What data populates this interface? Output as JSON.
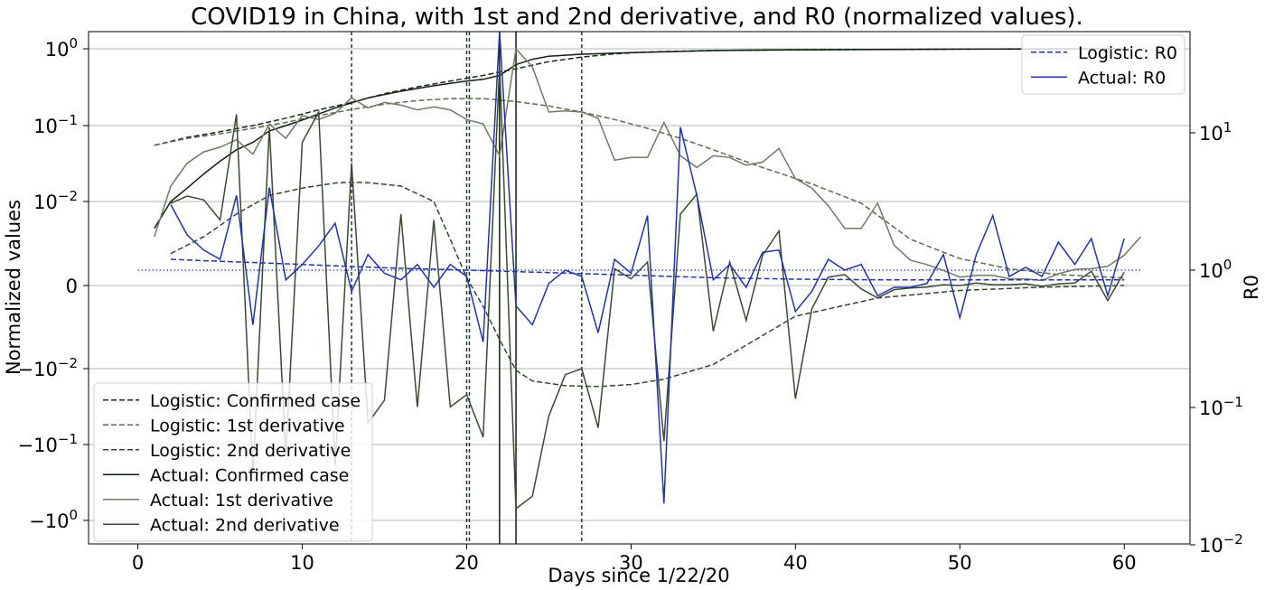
{
  "chart_data": {
    "type": "line",
    "title": "COVID19 in China, with 1st and 2nd derivative, and R0 (normalized values).",
    "xlabel": "Days since 1/22/20",
    "ylabel": "Normalized values",
    "y2label": "R0",
    "xlim": [
      -3,
      64
    ],
    "x_ticks": [
      "0",
      "10",
      "20",
      "30",
      "40",
      "50",
      "60"
    ],
    "y_scale": "symlog",
    "y_ticks": [
      {
        "base": "10",
        "exp": "0"
      },
      {
        "base": "10",
        "exp": "−1"
      },
      {
        "base": "10",
        "exp": "−2"
      },
      {
        "base": "0",
        "exp": ""
      },
      {
        "base": "−10",
        "exp": "−2"
      },
      {
        "base": "−10",
        "exp": "−1"
      },
      {
        "base": "−10",
        "exp": "0"
      }
    ],
    "y2_scale": "log",
    "y2_ticks": [
      {
        "base": "10",
        "exp": "1"
      },
      {
        "base": "10",
        "exp": "0"
      },
      {
        "base": "10",
        "exp": "−1"
      },
      {
        "base": "10",
        "exp": "−2"
      }
    ],
    "grid": "horizontal",
    "vlines": [
      13,
      20,
      22,
      23,
      27
    ],
    "r0_reference_line": 1.0,
    "legend_left": [
      {
        "label": "Logistic: Confirmed case",
        "color": "#1b2a1b",
        "style": "dashed"
      },
      {
        "label": "Logistic: 1st derivative",
        "color": "#5a6a50",
        "style": "dashed"
      },
      {
        "label": "Logistic: 2nd derivative",
        "color": "#2f4a2f",
        "style": "dashed"
      },
      {
        "label": "Actual:   Confirmed case",
        "color": "#0f1f0f",
        "style": "solid"
      },
      {
        "label": "Actual:   1st derivative",
        "color": "#707a66",
        "style": "solid"
      },
      {
        "label": "Actual:   2nd derivative",
        "color": "#3a4a30",
        "style": "solid"
      }
    ],
    "legend_right": [
      {
        "label": "Logistic: R0",
        "color": "#2233aa",
        "style": "dashed"
      },
      {
        "label": "Actual:   R0",
        "color": "#2233aa",
        "style": "solid"
      }
    ],
    "series": [
      {
        "name": "Logistic: Confirmed case",
        "axis": "left",
        "color": "#1b2a1b",
        "style": "dashed",
        "x": [
          1,
          3,
          5,
          7,
          9,
          11,
          13,
          15,
          17,
          19,
          21,
          23,
          25,
          27,
          29,
          31,
          35,
          40,
          45,
          50,
          55,
          60
        ],
        "y": [
          0.055,
          0.07,
          0.083,
          0.1,
          0.125,
          0.16,
          0.2,
          0.26,
          0.32,
          0.38,
          0.45,
          0.55,
          0.68,
          0.78,
          0.86,
          0.91,
          0.95,
          0.97,
          0.98,
          0.99,
          1.0,
          1.0
        ]
      },
      {
        "name": "Logistic: 1st derivative",
        "axis": "left",
        "color": "#5a6a50",
        "style": "dashed",
        "x": [
          1,
          3,
          5,
          7,
          9,
          11,
          13,
          15,
          17,
          19,
          21,
          23,
          25,
          27,
          29,
          31,
          33,
          35,
          38,
          41,
          44,
          47,
          50,
          53,
          56,
          60
        ],
        "y": [
          0.055,
          0.068,
          0.078,
          0.092,
          0.11,
          0.135,
          0.162,
          0.19,
          0.212,
          0.225,
          0.225,
          0.205,
          0.18,
          0.15,
          0.12,
          0.092,
          0.068,
          0.048,
          0.028,
          0.017,
          0.0098,
          0.0055,
          0.0032,
          0.002,
          0.0013,
          0.0009
        ]
      },
      {
        "name": "Logistic: 2nd derivative",
        "axis": "left",
        "color": "#2f4a2f",
        "style": "dashed",
        "x": [
          2,
          4,
          6,
          8,
          10,
          12,
          13,
          14,
          16,
          18,
          19,
          20,
          21,
          22,
          23,
          24,
          26,
          28,
          30,
          32,
          35,
          40,
          45,
          50,
          55,
          60
        ],
        "y": [
          0.0038,
          0.0058,
          0.0085,
          0.012,
          0.015,
          0.0175,
          0.018,
          0.0177,
          0.016,
          0.01,
          0.0055,
          0.0009,
          -0.0025,
          -0.0065,
          -0.0105,
          -0.0145,
          -0.0168,
          -0.0172,
          -0.0162,
          -0.0138,
          -0.0095,
          -0.0037,
          -0.0015,
          -0.0006,
          -0.0002,
          0.0
        ]
      },
      {
        "name": "Actual:   Confirmed case",
        "axis": "left",
        "color": "#0f1f0f",
        "style": "solid",
        "x": [
          1,
          2,
          3,
          4,
          5,
          6,
          7,
          8,
          9,
          10,
          12,
          14,
          16,
          18,
          20,
          21,
          22,
          23,
          24,
          25,
          27,
          30,
          35,
          40,
          50,
          60
        ],
        "y": [
          0.0068,
          0.01,
          0.015,
          0.023,
          0.034,
          0.048,
          0.06,
          0.085,
          0.1,
          0.118,
          0.17,
          0.23,
          0.28,
          0.33,
          0.38,
          0.4,
          0.45,
          0.62,
          0.73,
          0.8,
          0.85,
          0.89,
          0.95,
          0.97,
          0.99,
          1.0
        ]
      },
      {
        "name": "Actual:   1st derivative",
        "axis": "left",
        "color": "#707a66",
        "style": "solid",
        "x": [
          1,
          2,
          3,
          4,
          5,
          6,
          7,
          8,
          9,
          10,
          11,
          12,
          13,
          14,
          15,
          16,
          17,
          18,
          19,
          20,
          21,
          22,
          23,
          24,
          25,
          26,
          27,
          28,
          29,
          30,
          31,
          32,
          33,
          34,
          35,
          36,
          37,
          38,
          39,
          40,
          41,
          42,
          43,
          44,
          45,
          46,
          47,
          48,
          49,
          50,
          51,
          52,
          53,
          54,
          55,
          56,
          57,
          58,
          59,
          60,
          61
        ],
        "y": [
          0.0058,
          0.016,
          0.032,
          0.045,
          0.052,
          0.065,
          0.042,
          0.105,
          0.068,
          0.135,
          0.12,
          0.145,
          0.23,
          0.17,
          0.2,
          0.185,
          0.16,
          0.175,
          0.16,
          0.12,
          0.105,
          0.04,
          1.0,
          0.58,
          0.15,
          0.155,
          0.15,
          0.125,
          0.035,
          0.038,
          0.038,
          0.11,
          0.04,
          0.028,
          0.04,
          0.038,
          0.03,
          0.033,
          0.05,
          0.02,
          0.015,
          0.0095,
          0.0068,
          0.0068,
          0.0098,
          0.0048,
          0.003,
          0.0025,
          0.0018,
          0.001,
          0.0012,
          0.0012,
          0.0008,
          0.0008,
          0.0006,
          0.0014,
          0.0019,
          0.002,
          0.0023,
          0.0036,
          0.0058
        ]
      },
      {
        "name": "Actual:   2nd derivative",
        "axis": "left",
        "color": "#3a4a30",
        "style": "solid",
        "x": [
          2,
          3,
          4,
          5,
          6,
          7,
          8,
          9,
          10,
          11,
          12,
          13,
          14,
          15,
          16,
          17,
          18,
          19,
          20,
          21,
          22,
          23,
          24,
          25,
          26,
          27,
          28,
          29,
          30,
          31,
          32,
          33,
          34,
          35,
          36,
          37,
          38,
          39,
          40,
          41,
          42,
          43,
          44,
          45,
          46,
          47,
          48,
          49,
          50,
          51,
          52,
          53,
          54,
          55,
          56,
          57,
          58,
          59,
          60
        ],
        "y": [
          0.0098,
          0.0118,
          0.0105,
          0.0078,
          0.14,
          -0.25,
          0.095,
          -0.14,
          0.06,
          0.15,
          -0.19,
          0.032,
          -0.052,
          -0.026,
          0.0085,
          -0.032,
          0.0078,
          -0.032,
          -0.022,
          -0.08,
          0.6,
          -0.7,
          -0.48,
          -0.042,
          -0.012,
          -0.01,
          -0.06,
          0.002,
          0.0008,
          0.0028,
          -0.09,
          0.0085,
          0.0125,
          -0.0055,
          0.0028,
          -0.0042,
          0.0036,
          0.0065,
          -0.025,
          -0.0028,
          0.001,
          0.0013,
          -0.0004,
          -0.0015,
          -0.0005,
          -0.0003,
          -0.0002,
          0.0001,
          0.0,
          0.0003,
          0.0001,
          0.0001,
          0.0002,
          -0.0001,
          0.0002,
          0.0003,
          0.0017,
          -0.0018,
          0.0016
        ]
      },
      {
        "name": "Logistic: R0",
        "axis": "right",
        "color": "#2233aa",
        "style": "dashed",
        "x": [
          2,
          5,
          10,
          15,
          20,
          25,
          30,
          35,
          40,
          45,
          50,
          55,
          60
        ],
        "y": [
          1.2,
          1.16,
          1.1,
          1.04,
          1.0,
          0.96,
          0.92,
          0.88,
          0.86,
          0.85,
          0.85,
          0.85,
          0.85
        ]
      },
      {
        "name": "Actual:   R0",
        "axis": "right",
        "color": "#2233aa",
        "style": "solid",
        "x": [
          2,
          3,
          4,
          5,
          6,
          7,
          8,
          9,
          10,
          11,
          12,
          13,
          14,
          15,
          16,
          17,
          18,
          19,
          20,
          21,
          22,
          23,
          24,
          25,
          26,
          27,
          28,
          29,
          30,
          31,
          32,
          33,
          34,
          35,
          36,
          37,
          38,
          39,
          40,
          41,
          42,
          43,
          44,
          45,
          46,
          47,
          48,
          49,
          50,
          51,
          52,
          53,
          54,
          55,
          56,
          57,
          58,
          59,
          60
        ],
        "y": [
          3.0,
          1.8,
          1.4,
          1.2,
          3.5,
          0.4,
          4.0,
          0.85,
          1.1,
          1.5,
          2.2,
          0.7,
          1.3,
          0.95,
          0.85,
          1.1,
          0.75,
          1.1,
          0.9,
          0.3,
          55.0,
          0.55,
          0.4,
          0.8,
          1.0,
          0.9,
          0.35,
          1.2,
          0.95,
          2.5,
          0.02,
          11.0,
          3.5,
          0.85,
          1.1,
          0.75,
          1.35,
          1.4,
          0.5,
          0.7,
          1.2,
          1.0,
          1.1,
          0.65,
          0.75,
          0.75,
          0.8,
          1.3,
          0.45,
          1.3,
          2.5,
          0.9,
          1.05,
          0.9,
          1.6,
          1.1,
          1.7,
          0.65,
          1.7
        ]
      }
    ]
  }
}
